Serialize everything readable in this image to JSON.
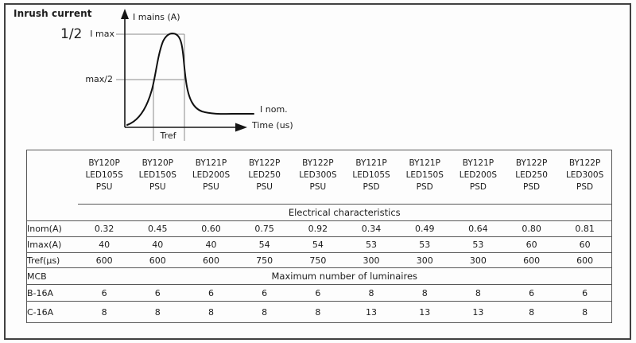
{
  "page": {
    "title": "Inrush current",
    "fraction_note": "1/2"
  },
  "graph": {
    "y_axis_label": "I mains (A)",
    "x_axis_label": "Time (us)",
    "peak_label": "I max",
    "half_peak_label": "max/2",
    "nominal_label": "I nom.",
    "tref_label": "Tref"
  },
  "table": {
    "column_headers": [
      [
        "BY120P",
        "LED105S",
        "PSU"
      ],
      [
        "BY120P",
        "LED150S",
        "PSU"
      ],
      [
        "BY121P",
        "LED200S",
        "PSU"
      ],
      [
        "BY122P",
        "LED250",
        "PSU"
      ],
      [
        "BY122P",
        "LED300S",
        "PSU"
      ],
      [
        "BY121P",
        "LED105S",
        "PSD"
      ],
      [
        "BY121P",
        "LED150S",
        "PSD"
      ],
      [
        "BY121P",
        "LED200S",
        "PSD"
      ],
      [
        "BY122P",
        "LED250",
        "PSD"
      ],
      [
        "BY122P",
        "LED300S",
        "PSD"
      ]
    ],
    "section_electrical": "Electrical characteristics",
    "mcb_label": "MCB",
    "section_luminaires": "Maximum number of luminaires",
    "electrical_rows": [
      {
        "label": "Inom(A)",
        "values": [
          "0.32",
          "0.45",
          "0.60",
          "0.75",
          "0.92",
          "0.34",
          "0.49",
          "0.64",
          "0.80",
          "0.81"
        ]
      },
      {
        "label": "Imax(A)",
        "values": [
          "40",
          "40",
          "40",
          "54",
          "54",
          "53",
          "53",
          "53",
          "60",
          "60"
        ]
      },
      {
        "label": "Tref(µs)",
        "values": [
          "600",
          "600",
          "600",
          "750",
          "750",
          "300",
          "300",
          "300",
          "600",
          "600"
        ]
      }
    ],
    "mcb_rows": [
      {
        "label": "B-16A",
        "values": [
          "6",
          "6",
          "6",
          "6",
          "6",
          "8",
          "8",
          "8",
          "6",
          "6"
        ]
      },
      {
        "label": "C-16A",
        "values": [
          "8",
          "8",
          "8",
          "8",
          "8",
          "13",
          "13",
          "13",
          "8",
          "8"
        ]
      }
    ]
  },
  "colors": {
    "ink": "#1c1c1c",
    "rule": "#585858",
    "reference_line": "#8c8c8c",
    "page_border": "#414141"
  }
}
